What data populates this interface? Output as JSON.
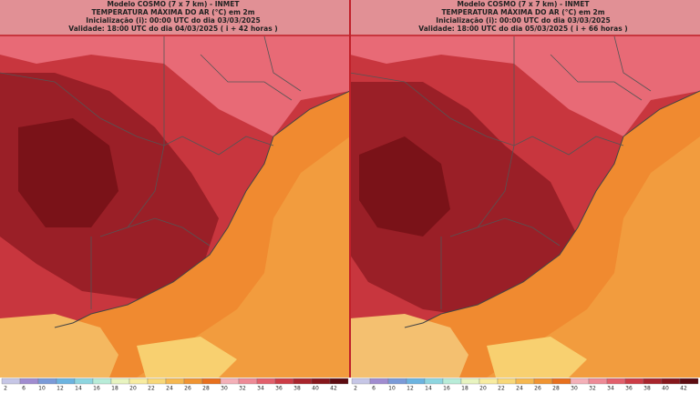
{
  "panels": [
    {
      "model": "Modelo COSMO (7 x 7 km) - INMET",
      "title": "TEMPERATURA MÁXIMA DO AR (°C) em 2m",
      "init": "Inicialização (i): 00:00 UTC do dia 03/03/2025",
      "valid": "Validade: 18:00 UTC do dia 04/03/2025 ( i + 42 horas )"
    },
    {
      "model": "Modelo COSMO (7 x 7 km) - INMET",
      "title": "TEMPERATURA MÁXIMA DO AR (°C) em 2m",
      "init": "Inicialização (i): 00:00 UTC do dia 03/03/2025",
      "valid": "Validade: 18:00 UTC do dia 05/03/2025 ( i + 66 horas )"
    }
  ],
  "colorbar": {
    "labels": [
      2,
      6,
      10,
      12,
      14,
      16,
      18,
      20,
      22,
      24,
      26,
      28,
      30,
      32,
      34,
      36,
      38,
      40,
      42
    ],
    "colors": [
      "#c6c6e6",
      "#a08cd0",
      "#7a9ad8",
      "#6cb4e0",
      "#8ed6e0",
      "#b8ecd8",
      "#e8f4c0",
      "#f8eca0",
      "#f8d878",
      "#f6b850",
      "#f09432",
      "#e8701e",
      "#f4b0b8",
      "#ee8a96",
      "#e2606c",
      "#cc3c46",
      "#a8242c",
      "#86161c",
      "#5c0a10"
    ]
  }
}
